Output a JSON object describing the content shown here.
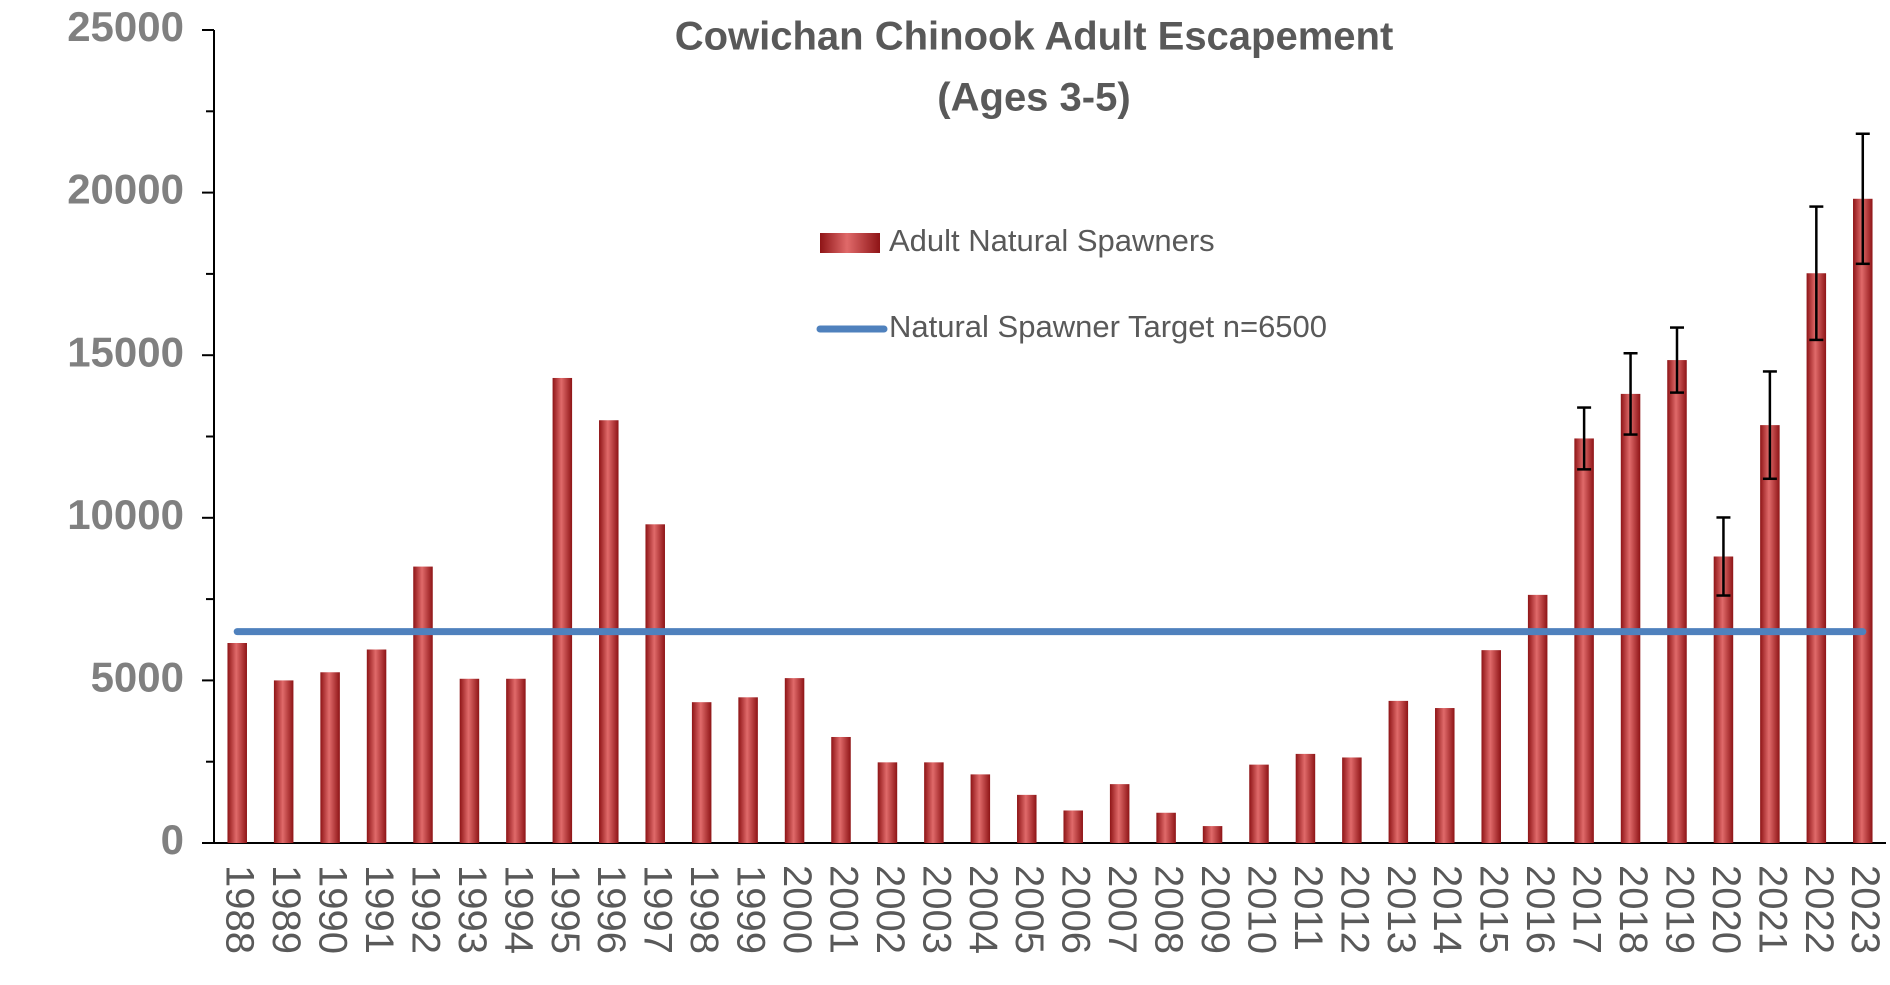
{
  "chart_data": {
    "type": "bar",
    "title": "Cowichan Chinook Adult Escapement",
    "subtitle": "(Ages 3-5)",
    "categories": [
      "1988",
      "1989",
      "1990",
      "1991",
      "1992",
      "1993",
      "1994",
      "1995",
      "1996",
      "1997",
      "1998",
      "1999",
      "2000",
      "2001",
      "2002",
      "2003",
      "2004",
      "2005",
      "2006",
      "2007",
      "2008",
      "2009",
      "2010",
      "2011",
      "2012",
      "2013",
      "2014",
      "2015",
      "2016",
      "2017",
      "2018",
      "2019",
      "2020",
      "2021",
      "2022",
      "2023"
    ],
    "series": [
      {
        "name": "Adult Natural Spawners",
        "color": "#c0292b",
        "values": [
          6150,
          5000,
          5250,
          5950,
          8500,
          5050,
          5050,
          14300,
          13000,
          9800,
          4330,
          4480,
          5070,
          3260,
          2480,
          2480,
          2110,
          1480,
          1000,
          1810,
          930,
          520,
          2410,
          2740,
          2630,
          4370,
          4150,
          5930,
          7630,
          12440,
          13810,
          14850,
          8810,
          12850,
          17520,
          19810
        ],
        "errors": [
          null,
          null,
          null,
          null,
          null,
          null,
          null,
          null,
          null,
          null,
          null,
          null,
          null,
          null,
          null,
          null,
          null,
          null,
          null,
          null,
          null,
          null,
          null,
          null,
          null,
          null,
          null,
          null,
          null,
          950,
          1250,
          1000,
          1200,
          1650,
          2050,
          2000
        ]
      }
    ],
    "target": {
      "name": "Natural Spawner Target n=6500",
      "value": 6500,
      "color": "#4f81bd"
    },
    "ylim": [
      0,
      25000
    ],
    "yticks": [
      0,
      5000,
      10000,
      15000,
      20000,
      25000
    ],
    "yticks_minor": [
      2500,
      7500,
      12500,
      17500,
      22500
    ],
    "grid": false
  }
}
